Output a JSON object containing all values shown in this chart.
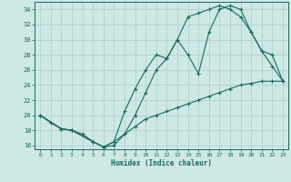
{
  "xlabel": "Humidex (Indice chaleur)",
  "background_color": "#cde8e5",
  "line_color": "#1a6b5a",
  "grid_color": "#aacfcb",
  "xlim": [
    -0.5,
    23.5
  ],
  "ylim": [
    15.5,
    35
  ],
  "xticks": [
    0,
    1,
    2,
    3,
    4,
    5,
    6,
    7,
    8,
    9,
    10,
    11,
    12,
    13,
    14,
    15,
    16,
    17,
    18,
    19,
    20,
    21,
    22,
    23
  ],
  "yticks": [
    16,
    18,
    20,
    22,
    24,
    26,
    28,
    30,
    32,
    34
  ],
  "line_a_x": [
    0,
    1,
    2,
    3,
    4,
    5,
    6,
    7,
    8,
    9,
    10,
    11,
    12,
    13,
    14,
    15,
    16,
    17,
    18,
    19,
    20,
    21,
    22,
    23
  ],
  "line_a_y": [
    20,
    19,
    18.2,
    18,
    17.5,
    16.5,
    15.8,
    16.5,
    17.5,
    18.5,
    19.5,
    20,
    20.5,
    21,
    21.5,
    22,
    22.5,
    23,
    23.5,
    24,
    24.2,
    24.5,
    24.5,
    24.5
  ],
  "line_b_x": [
    0,
    2,
    3,
    5,
    6,
    7,
    8,
    9,
    10,
    11,
    12,
    13,
    14,
    15,
    16,
    17,
    18,
    19,
    20,
    21,
    22,
    23
  ],
  "line_b_y": [
    20,
    18.2,
    18,
    16.5,
    15.8,
    16.5,
    20.5,
    23.5,
    26,
    28,
    27.5,
    30,
    28,
    25.5,
    31,
    34,
    34.5,
    34,
    31,
    28.5,
    28,
    24.5
  ],
  "line_c_x": [
    0,
    2,
    3,
    5,
    6,
    7,
    8,
    9,
    10,
    11,
    12,
    13,
    14,
    15,
    16,
    17,
    18,
    19,
    20,
    21,
    22,
    23
  ],
  "line_c_y": [
    20,
    18.2,
    18,
    16.5,
    15.8,
    16,
    17.5,
    20,
    23,
    26,
    27.5,
    30,
    33,
    33.5,
    34,
    34.5,
    34,
    33,
    31,
    28.5,
    26.5,
    24.5
  ]
}
